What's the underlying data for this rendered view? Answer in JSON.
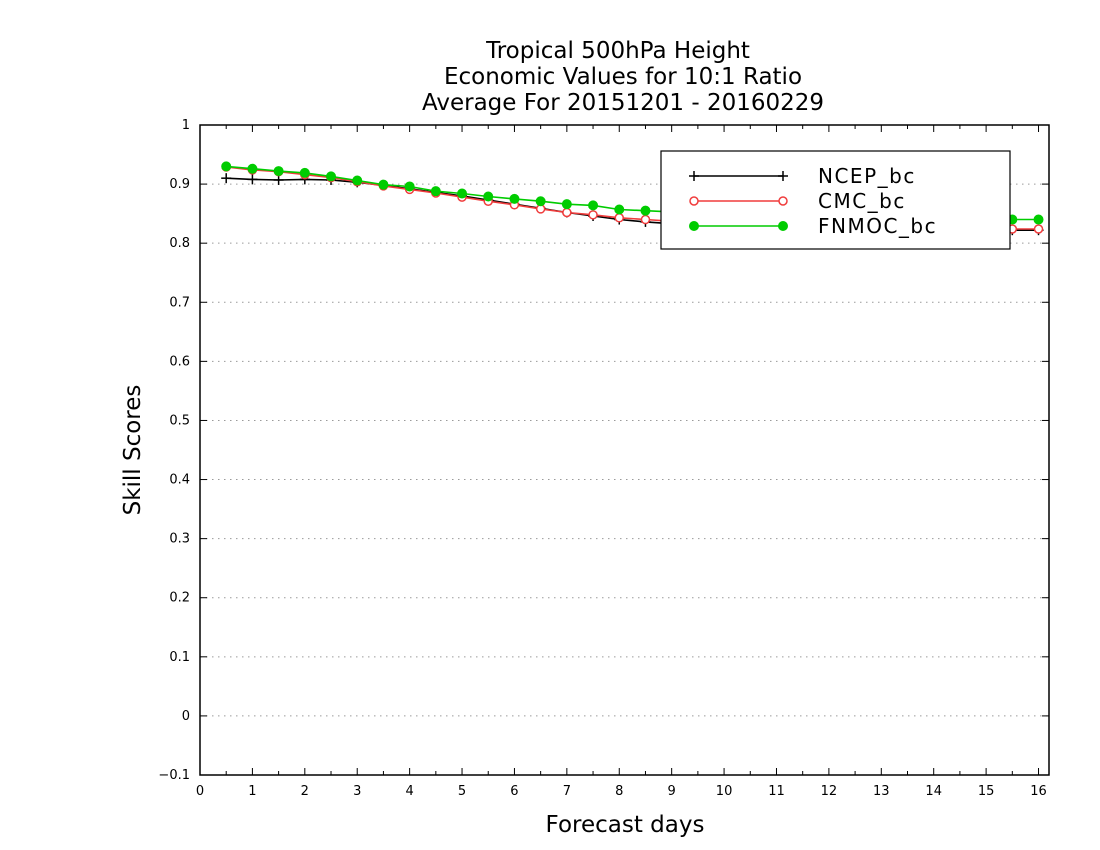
{
  "chart_data": {
    "type": "line",
    "title": [
      "Tropical 500hPa Height",
      "Economic Values for 10:1 Ratio",
      "Average For 20151201 - 20160229"
    ],
    "xlabel": "Forecast days",
    "ylabel": "Skill Scores",
    "xlim": [
      0,
      16.2
    ],
    "ylim": [
      -0.1,
      1
    ],
    "xticks": [
      "0",
      "1",
      "2",
      "3",
      "4",
      "5",
      "6",
      "7",
      "8",
      "9",
      "10",
      "11",
      "12",
      "13",
      "14",
      "15",
      "16"
    ],
    "yticks": [
      "−0.1",
      "0",
      "0.1",
      "0.2",
      "0.3",
      "0.4",
      "0.5",
      "0.6",
      "0.7",
      "0.8",
      "0.9",
      "1"
    ],
    "grid": "horizontal-dotted",
    "legend_position": "top-right",
    "x": [
      0.5,
      1,
      1.5,
      2,
      2.5,
      3,
      3.5,
      4,
      4.5,
      5,
      5.5,
      6,
      6.5,
      7,
      7.5,
      8,
      8.5,
      9,
      9.5,
      10,
      10.5,
      11,
      11.5,
      12,
      12.5,
      13,
      13.5,
      14,
      14.5,
      15,
      15.5,
      16
    ],
    "series": [
      {
        "name": "NCEP_bc",
        "color": "#000000",
        "marker": "plus",
        "values": [
          0.91,
          0.908,
          0.907,
          0.908,
          0.907,
          0.903,
          0.898,
          0.892,
          0.886,
          0.88,
          0.873,
          0.866,
          0.859,
          0.852,
          0.846,
          0.84,
          0.836,
          0.833,
          0.831,
          0.829,
          0.828,
          0.827,
          0.826,
          0.825,
          0.825,
          0.824,
          0.824,
          0.823,
          0.823,
          0.822,
          0.822,
          0.822
        ]
      },
      {
        "name": "CMC_bc",
        "color": "#f03c3c",
        "marker": "open-circle",
        "values": [
          0.929,
          0.924,
          0.921,
          0.916,
          0.911,
          0.904,
          0.897,
          0.891,
          0.885,
          0.878,
          0.871,
          0.865,
          0.858,
          0.852,
          0.848,
          0.843,
          0.84,
          0.837,
          0.835,
          0.833,
          0.832,
          0.831,
          0.83,
          0.829,
          0.828,
          0.827,
          0.827,
          0.826,
          0.825,
          0.825,
          0.824,
          0.824
        ]
      },
      {
        "name": "FNMOC_bc",
        "color": "#00cc00",
        "marker": "filled-circle",
        "values": [
          0.93,
          0.926,
          0.922,
          0.919,
          0.913,
          0.906,
          0.899,
          0.896,
          0.888,
          0.884,
          0.879,
          0.875,
          0.871,
          0.866,
          0.864,
          0.857,
          0.855,
          0.853,
          0.851,
          0.849,
          0.848,
          0.847,
          0.846,
          0.845,
          0.844,
          0.843,
          0.843,
          0.842,
          0.841,
          0.841,
          0.84,
          0.84
        ]
      }
    ]
  }
}
